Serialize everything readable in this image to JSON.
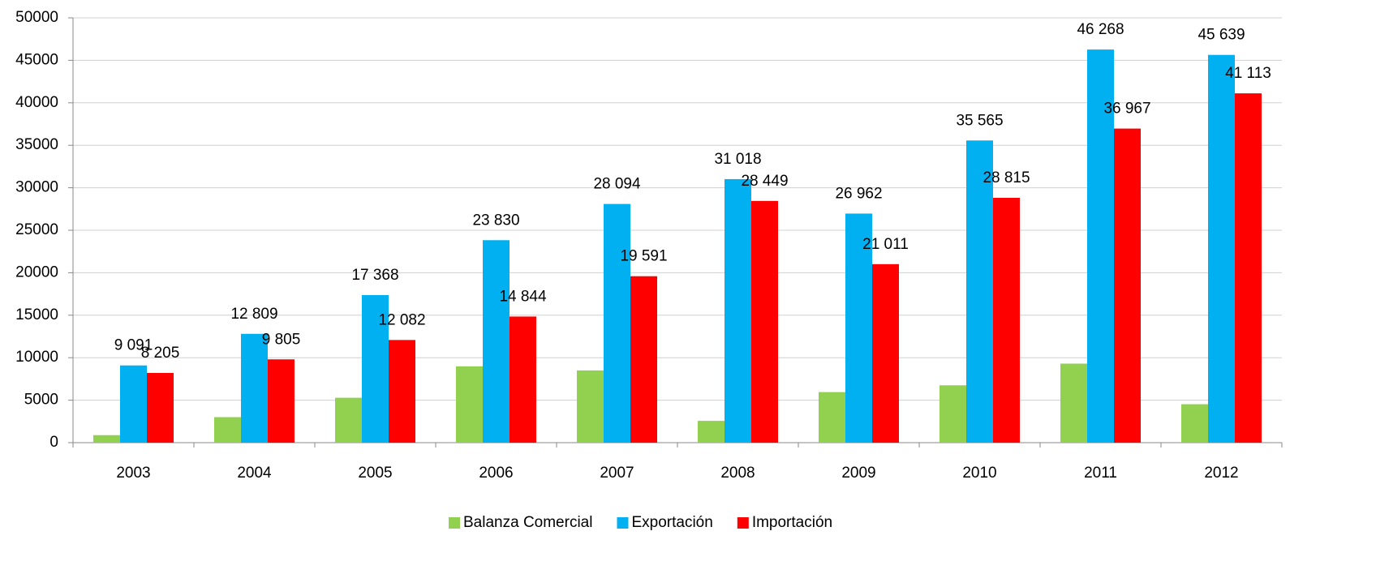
{
  "chart_data": {
    "type": "bar",
    "categories": [
      "2003",
      "2004",
      "2005",
      "2006",
      "2007",
      "2008",
      "2009",
      "2010",
      "2011",
      "2012"
    ],
    "series": [
      {
        "name": "Balanza Comercial",
        "color": "#92d050",
        "values": [
          886,
          3004,
          5286,
          8986,
          8503,
          2569,
          5951,
          6750,
          9301,
          4526
        ]
      },
      {
        "name": "Exportación",
        "color": "#00b0f0",
        "values": [
          9091,
          12809,
          17368,
          23830,
          28094,
          31018,
          26962,
          35565,
          46268,
          45639
        ],
        "value_labels": [
          "9 091",
          "12 809",
          "17 368",
          "23 830",
          "28 094",
          "31 018",
          "26 962",
          "35 565",
          "46 268",
          "45 639"
        ]
      },
      {
        "name": "Importación",
        "color": "#ff0000",
        "values": [
          8205,
          9805,
          12082,
          14844,
          19591,
          28449,
          21011,
          28815,
          36967,
          41113
        ],
        "value_labels": [
          "8 205",
          "9 805",
          "12 082",
          "14 844",
          "19 591",
          "28 449",
          "21 011",
          "28 815",
          "36 967",
          "41 113"
        ]
      }
    ],
    "ylim": [
      0,
      50000
    ],
    "yticks": [
      0,
      5000,
      10000,
      15000,
      20000,
      25000,
      30000,
      35000,
      40000,
      45000,
      50000
    ],
    "grid": true,
    "legend": "bottom"
  }
}
